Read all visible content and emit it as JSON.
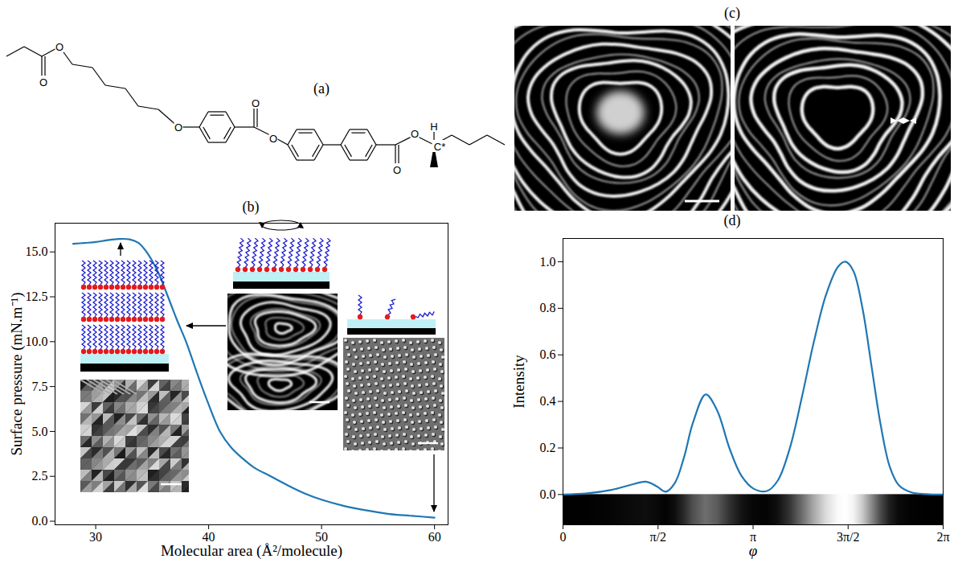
{
  "structure": {
    "label": "(a)",
    "atoms": [
      "O",
      "O",
      "O",
      "O",
      "O",
      "O",
      "O",
      "H",
      "C*"
    ]
  },
  "micrographs": {
    "label": "(c)"
  },
  "chart_data": [
    {
      "type": "line",
      "title": "(b)",
      "x_label": "Molecular area (Å²/molecule)",
      "y_label": "Surface pressure (mN.m⁻¹)",
      "x": [
        28,
        29,
        30,
        31,
        32,
        33,
        33.8,
        34.5,
        35.5,
        36.4,
        37.2,
        38,
        39,
        40,
        41,
        42,
        43,
        44,
        45.5,
        47,
        48.5,
        50,
        52,
        54,
        56,
        58,
        60
      ],
      "values": [
        15.45,
        15.5,
        15.55,
        15.65,
        15.72,
        15.7,
        15.5,
        15.0,
        13.9,
        12.5,
        11.2,
        10.0,
        8.2,
        6.5,
        5.0,
        4.1,
        3.5,
        3.0,
        2.5,
        2.0,
        1.55,
        1.2,
        0.85,
        0.6,
        0.4,
        0.3,
        0.2
      ],
      "color": "#1f77b4",
      "xlim": [
        26.4,
        61.2
      ],
      "xticks": [
        30,
        40,
        50,
        60
      ],
      "ylim": [
        -0.2,
        16.6
      ],
      "yticks": [
        {
          "value": 0,
          "label": "0.0"
        },
        2.5,
        {
          "value": 5,
          "label": "5.0"
        },
        7.5,
        {
          "value": 10,
          "label": "10.0"
        },
        12.5,
        {
          "value": 15,
          "label": "15.0"
        }
      ],
      "grid": false
    },
    {
      "type": "line",
      "title": "(d)",
      "x_label": "φ",
      "y_label": "Intensity",
      "x": [
        0,
        0.4,
        0.8,
        1.1,
        1.37,
        1.55,
        1.7,
        1.85,
        2.0,
        2.15,
        2.36,
        2.55,
        2.75,
        2.95,
        3.15,
        3.37,
        3.55,
        3.75,
        3.95,
        4.15,
        4.35,
        4.55,
        4.67,
        4.8,
        4.95,
        5.1,
        5.25,
        5.4,
        5.55,
        5.75,
        6.0,
        6.2832
      ],
      "values": [
        0,
        0.005,
        0.02,
        0.04,
        0.055,
        0.035,
        0.012,
        0.05,
        0.16,
        0.31,
        0.43,
        0.36,
        0.2,
        0.08,
        0.025,
        0.015,
        0.06,
        0.2,
        0.42,
        0.66,
        0.86,
        0.98,
        1.0,
        0.96,
        0.8,
        0.55,
        0.3,
        0.12,
        0.04,
        0.01,
        0.002,
        0
      ],
      "color": "#1f77b4",
      "xlim": [
        0,
        6.2832
      ],
      "xticks": [
        0,
        {
          "value": 1.5708,
          "label": "π/2"
        },
        {
          "value": 3.1416,
          "label": "π"
        },
        {
          "value": 4.7124,
          "label": "3π/2"
        },
        {
          "value": 6.2832,
          "label": "2π"
        }
      ],
      "ylim": [
        -0.13,
        1.1
      ],
      "yticks": [
        {
          "value": 0,
          "label": "0.0"
        },
        0.2,
        0.4,
        0.6,
        0.8,
        {
          "value": 1,
          "label": "1.0"
        }
      ],
      "grid": false
    }
  ]
}
